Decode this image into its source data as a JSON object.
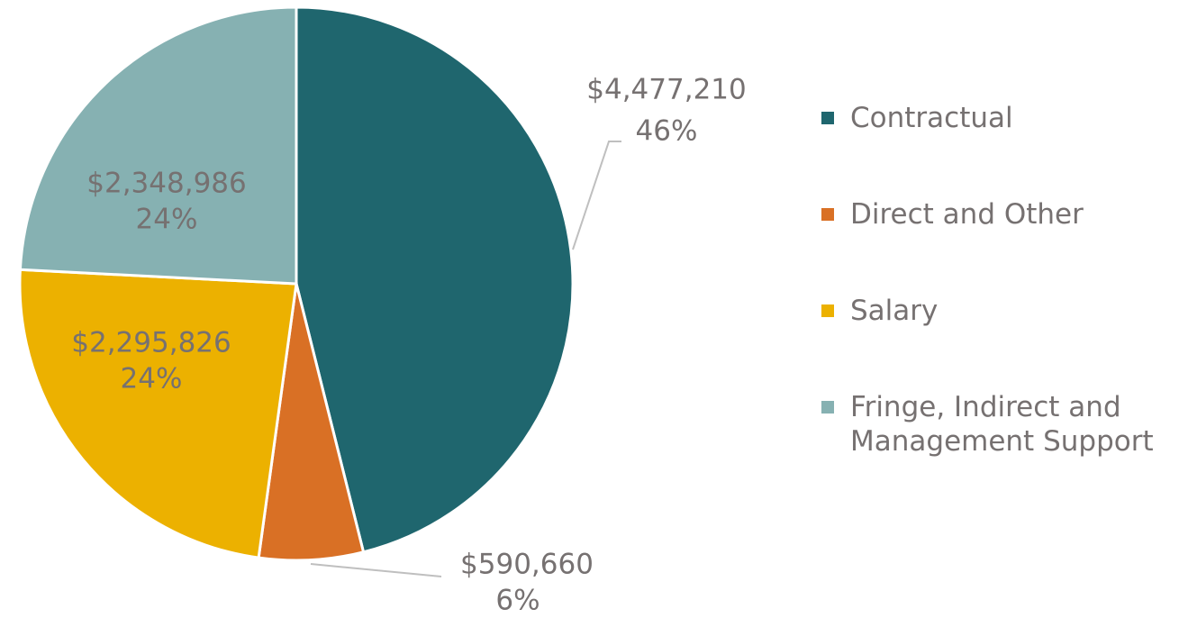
{
  "chart_data": {
    "type": "pie",
    "categories": [
      "Contractual",
      "Direct and Other",
      "Salary",
      "Fringe, Indirect and Management Support"
    ],
    "values": [
      4477210,
      590660,
      2295826,
      2348986
    ],
    "value_labels": [
      "$4,477,210",
      "$590,660",
      "$2,295,826",
      "$2,348,986"
    ],
    "percents": [
      46,
      6,
      24,
      24
    ],
    "percent_labels": [
      "46%",
      "6%",
      "24%",
      "24%"
    ],
    "colors": [
      "#1f666e",
      "#d97025",
      "#ecb100",
      "#86b1b2"
    ],
    "legend": "right"
  }
}
